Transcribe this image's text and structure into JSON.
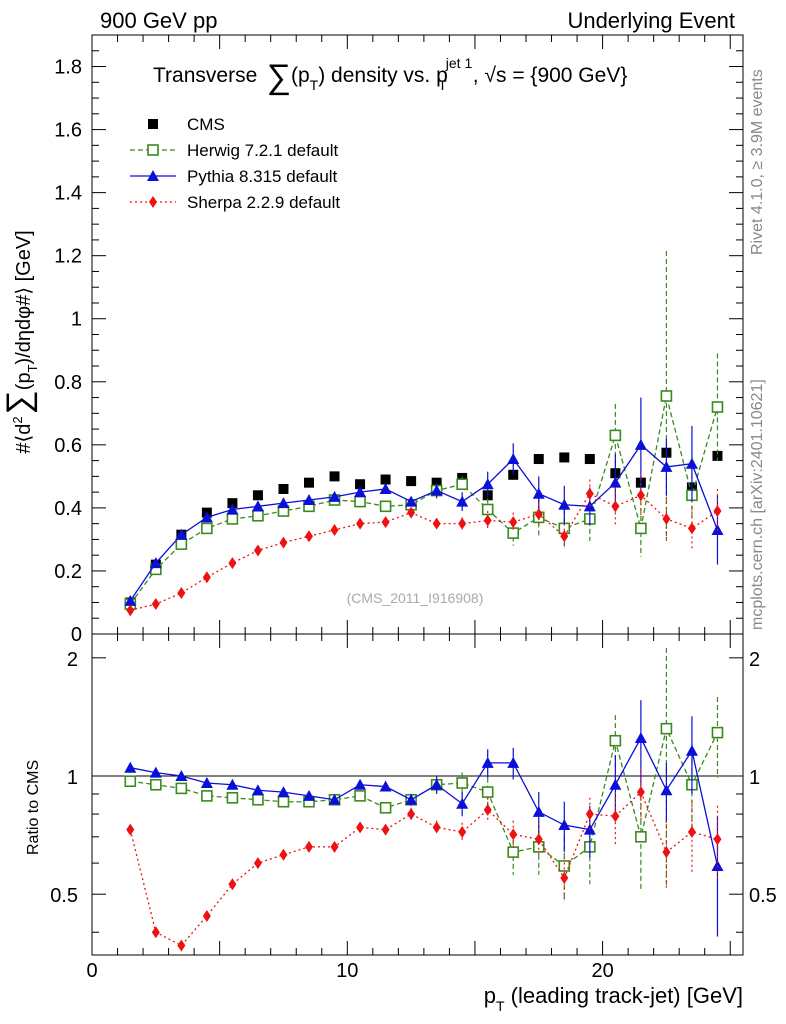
{
  "header": {
    "left": "900 GeV pp",
    "right": "Underlying Event"
  },
  "title": {
    "pre": "Transverse",
    "mid": "(p",
    "mid_sub": "T",
    "post1": ") density vs. p",
    "post_sub": "T",
    "post_sup": "jet 1",
    "post2": ", √s = {900 GeV}"
  },
  "side_labels": {
    "top": "Rivet 4.1.0, ≥ 3.9M events",
    "bottom": "mcplots.cern.ch [arXiv:2401.10621]"
  },
  "watermark": "(CMS_2011_I916908)",
  "colors": {
    "cms": "#000000",
    "herwig": "#3a8a1e",
    "pythia": "#0a10d8",
    "sherpa": "#ee1111"
  },
  "chart_data": [
    {
      "type": "scatter",
      "title": "Transverse ∑(pT) density vs. pT jet 1, √s = {900 GeV}",
      "ylabel": "#⟨d² ∑(pT)/dηdφ#⟩ [GeV]",
      "ylabel_parts": {
        "a": "#⟨d",
        "a_sup": "2",
        "b": "(p",
        "b_sub": "T",
        "c": ")/dηdφ#⟩ [GeV]"
      },
      "xlim": [
        0,
        25.5
      ],
      "ylim": [
        0,
        1.9
      ],
      "yticks": [
        0,
        0.2,
        0.4,
        0.6,
        0.8,
        1,
        1.2,
        1.4,
        1.6,
        1.8
      ],
      "ytick_labels": [
        "0",
        "0.2",
        "0.4",
        "0.6",
        "0.8",
        "1",
        "1.2",
        "1.4",
        "1.6",
        "1.8"
      ],
      "x": [
        1.5,
        2.5,
        3.5,
        4.5,
        5.5,
        6.5,
        7.5,
        8.5,
        9.5,
        10.5,
        11.5,
        12.5,
        13.5,
        14.5,
        15.5,
        16.5,
        17.5,
        18.5,
        19.5,
        20.5,
        21.5,
        22.5,
        23.5,
        24.5
      ],
      "series": [
        {
          "name": "CMS",
          "style": "cms",
          "values": [
            0.1,
            0.22,
            0.315,
            0.385,
            0.415,
            0.44,
            0.46,
            0.48,
            0.5,
            0.475,
            0.49,
            0.485,
            0.48,
            0.495,
            0.44,
            0.505,
            0.555,
            0.56,
            0.555,
            0.51,
            0.48,
            0.575,
            0.465,
            0.565
          ],
          "errors": [
            0,
            0,
            0,
            0,
            0,
            0,
            0,
            0,
            0,
            0,
            0,
            0,
            0,
            0,
            0,
            0,
            0,
            0,
            0,
            0,
            0,
            0,
            0,
            0
          ]
        },
        {
          "name": "Herwig 7.2.1 default",
          "style": "herwig",
          "values": [
            0.095,
            0.205,
            0.285,
            0.335,
            0.365,
            0.375,
            0.39,
            0.405,
            0.425,
            0.42,
            0.405,
            0.41,
            0.455,
            0.475,
            0.395,
            0.32,
            0.37,
            0.335,
            0.365,
            0.63,
            0.335,
            0.755,
            0.44,
            0.72
          ],
          "errors": [
            0,
            0,
            0,
            0,
            0,
            0,
            0,
            0,
            0,
            0,
            0,
            0,
            0,
            0.025,
            0.035,
            0.04,
            0.06,
            0.06,
            0.07,
            0.1,
            0.09,
            0.46,
            0.12,
            0.17
          ]
        },
        {
          "name": "Pythia 8.315 default",
          "style": "pythia",
          "values": [
            0.105,
            0.225,
            0.315,
            0.37,
            0.395,
            0.405,
            0.415,
            0.425,
            0.435,
            0.45,
            0.46,
            0.42,
            0.455,
            0.42,
            0.475,
            0.555,
            0.445,
            0.41,
            0.405,
            0.48,
            0.6,
            0.53,
            0.54,
            0.33
          ],
          "errors": [
            0,
            0,
            0,
            0,
            0,
            0,
            0,
            0,
            0,
            0,
            0.01,
            0.015,
            0.025,
            0.03,
            0.04,
            0.05,
            0.055,
            0.06,
            0.06,
            0.09,
            0.15,
            0.09,
            0.12,
            0.11
          ]
        },
        {
          "name": "Sherpa 2.2.9 default",
          "style": "sherpa",
          "values": [
            0.075,
            0.095,
            0.13,
            0.18,
            0.225,
            0.265,
            0.29,
            0.31,
            0.33,
            0.35,
            0.355,
            0.385,
            0.35,
            0.35,
            0.36,
            0.355,
            0.38,
            0.31,
            0.445,
            0.405,
            0.44,
            0.365,
            0.335,
            0.39
          ],
          "errors": [
            0,
            0,
            0,
            0,
            0,
            0,
            0,
            0,
            0,
            0,
            0,
            0.015,
            0.015,
            0.02,
            0.03,
            0.03,
            0.035,
            0.04,
            0.045,
            0.06,
            0.07,
            0.07,
            0.07,
            0.07
          ]
        }
      ]
    },
    {
      "type": "scatter",
      "title": "",
      "ylabel": "Ratio to CMS",
      "xlabel": "pT (leading track-jet) [GeV]",
      "xlabel_parts": {
        "a": "p",
        "a_sub": "T",
        "b": " (leading track-jet) [GeV]"
      },
      "xlim": [
        0,
        25.5
      ],
      "ylim": [
        0.35,
        2.3
      ],
      "ylog": true,
      "yticks": [
        0.5,
        1,
        2
      ],
      "ytick_labels": [
        "0.5",
        "1",
        "2"
      ],
      "xticks": [
        0,
        10,
        20
      ],
      "xtick_labels": [
        "0",
        "10",
        "20"
      ],
      "x": [
        1.5,
        2.5,
        3.5,
        4.5,
        5.5,
        6.5,
        7.5,
        8.5,
        9.5,
        10.5,
        11.5,
        12.5,
        13.5,
        14.5,
        15.5,
        16.5,
        17.5,
        18.5,
        19.5,
        20.5,
        21.5,
        22.5,
        23.5,
        24.5
      ],
      "reference": 1,
      "series": [
        {
          "name": "Herwig 7.2.1 default",
          "style": "herwig",
          "values": [
            0.97,
            0.95,
            0.93,
            0.89,
            0.88,
            0.87,
            0.86,
            0.86,
            0.87,
            0.89,
            0.83,
            0.87,
            0.95,
            0.96,
            0.91,
            0.64,
            0.66,
            0.59,
            0.66,
            1.23,
            0.7,
            1.32,
            0.95,
            1.29
          ],
          "errors": [
            0,
            0,
            0,
            0,
            0,
            0,
            0,
            0,
            0,
            0,
            0,
            0,
            0,
            0.06,
            0.08,
            0.08,
            0.1,
            0.11,
            0.13,
            0.2,
            0.19,
            0.8,
            0.26,
            0.3
          ]
        },
        {
          "name": "Pythia 8.315 default",
          "style": "pythia",
          "values": [
            1.05,
            1.02,
            1.0,
            0.96,
            0.95,
            0.92,
            0.91,
            0.89,
            0.87,
            0.95,
            0.94,
            0.87,
            0.95,
            0.85,
            1.08,
            1.08,
            0.81,
            0.75,
            0.73,
            0.95,
            1.25,
            0.92,
            1.16,
            0.59
          ],
          "errors": [
            0,
            0,
            0,
            0,
            0,
            0,
            0.01,
            0.01,
            0.01,
            0.01,
            0.02,
            0.03,
            0.05,
            0.06,
            0.09,
            0.1,
            0.1,
            0.11,
            0.11,
            0.18,
            0.31,
            0.16,
            0.26,
            0.2
          ]
        },
        {
          "name": "Sherpa 2.2.9 default",
          "style": "sherpa",
          "values": [
            0.73,
            0.4,
            0.37,
            0.44,
            0.53,
            0.6,
            0.63,
            0.66,
            0.66,
            0.74,
            0.73,
            0.8,
            0.74,
            0.72,
            0.82,
            0.71,
            0.69,
            0.55,
            0.8,
            0.79,
            0.91,
            0.64,
            0.72,
            0.69
          ],
          "errors": [
            0,
            0,
            0,
            0,
            0,
            0,
            0,
            0,
            0,
            0,
            0,
            0.03,
            0.03,
            0.04,
            0.06,
            0.06,
            0.07,
            0.07,
            0.08,
            0.12,
            0.14,
            0.13,
            0.15,
            0.15
          ]
        }
      ]
    }
  ]
}
